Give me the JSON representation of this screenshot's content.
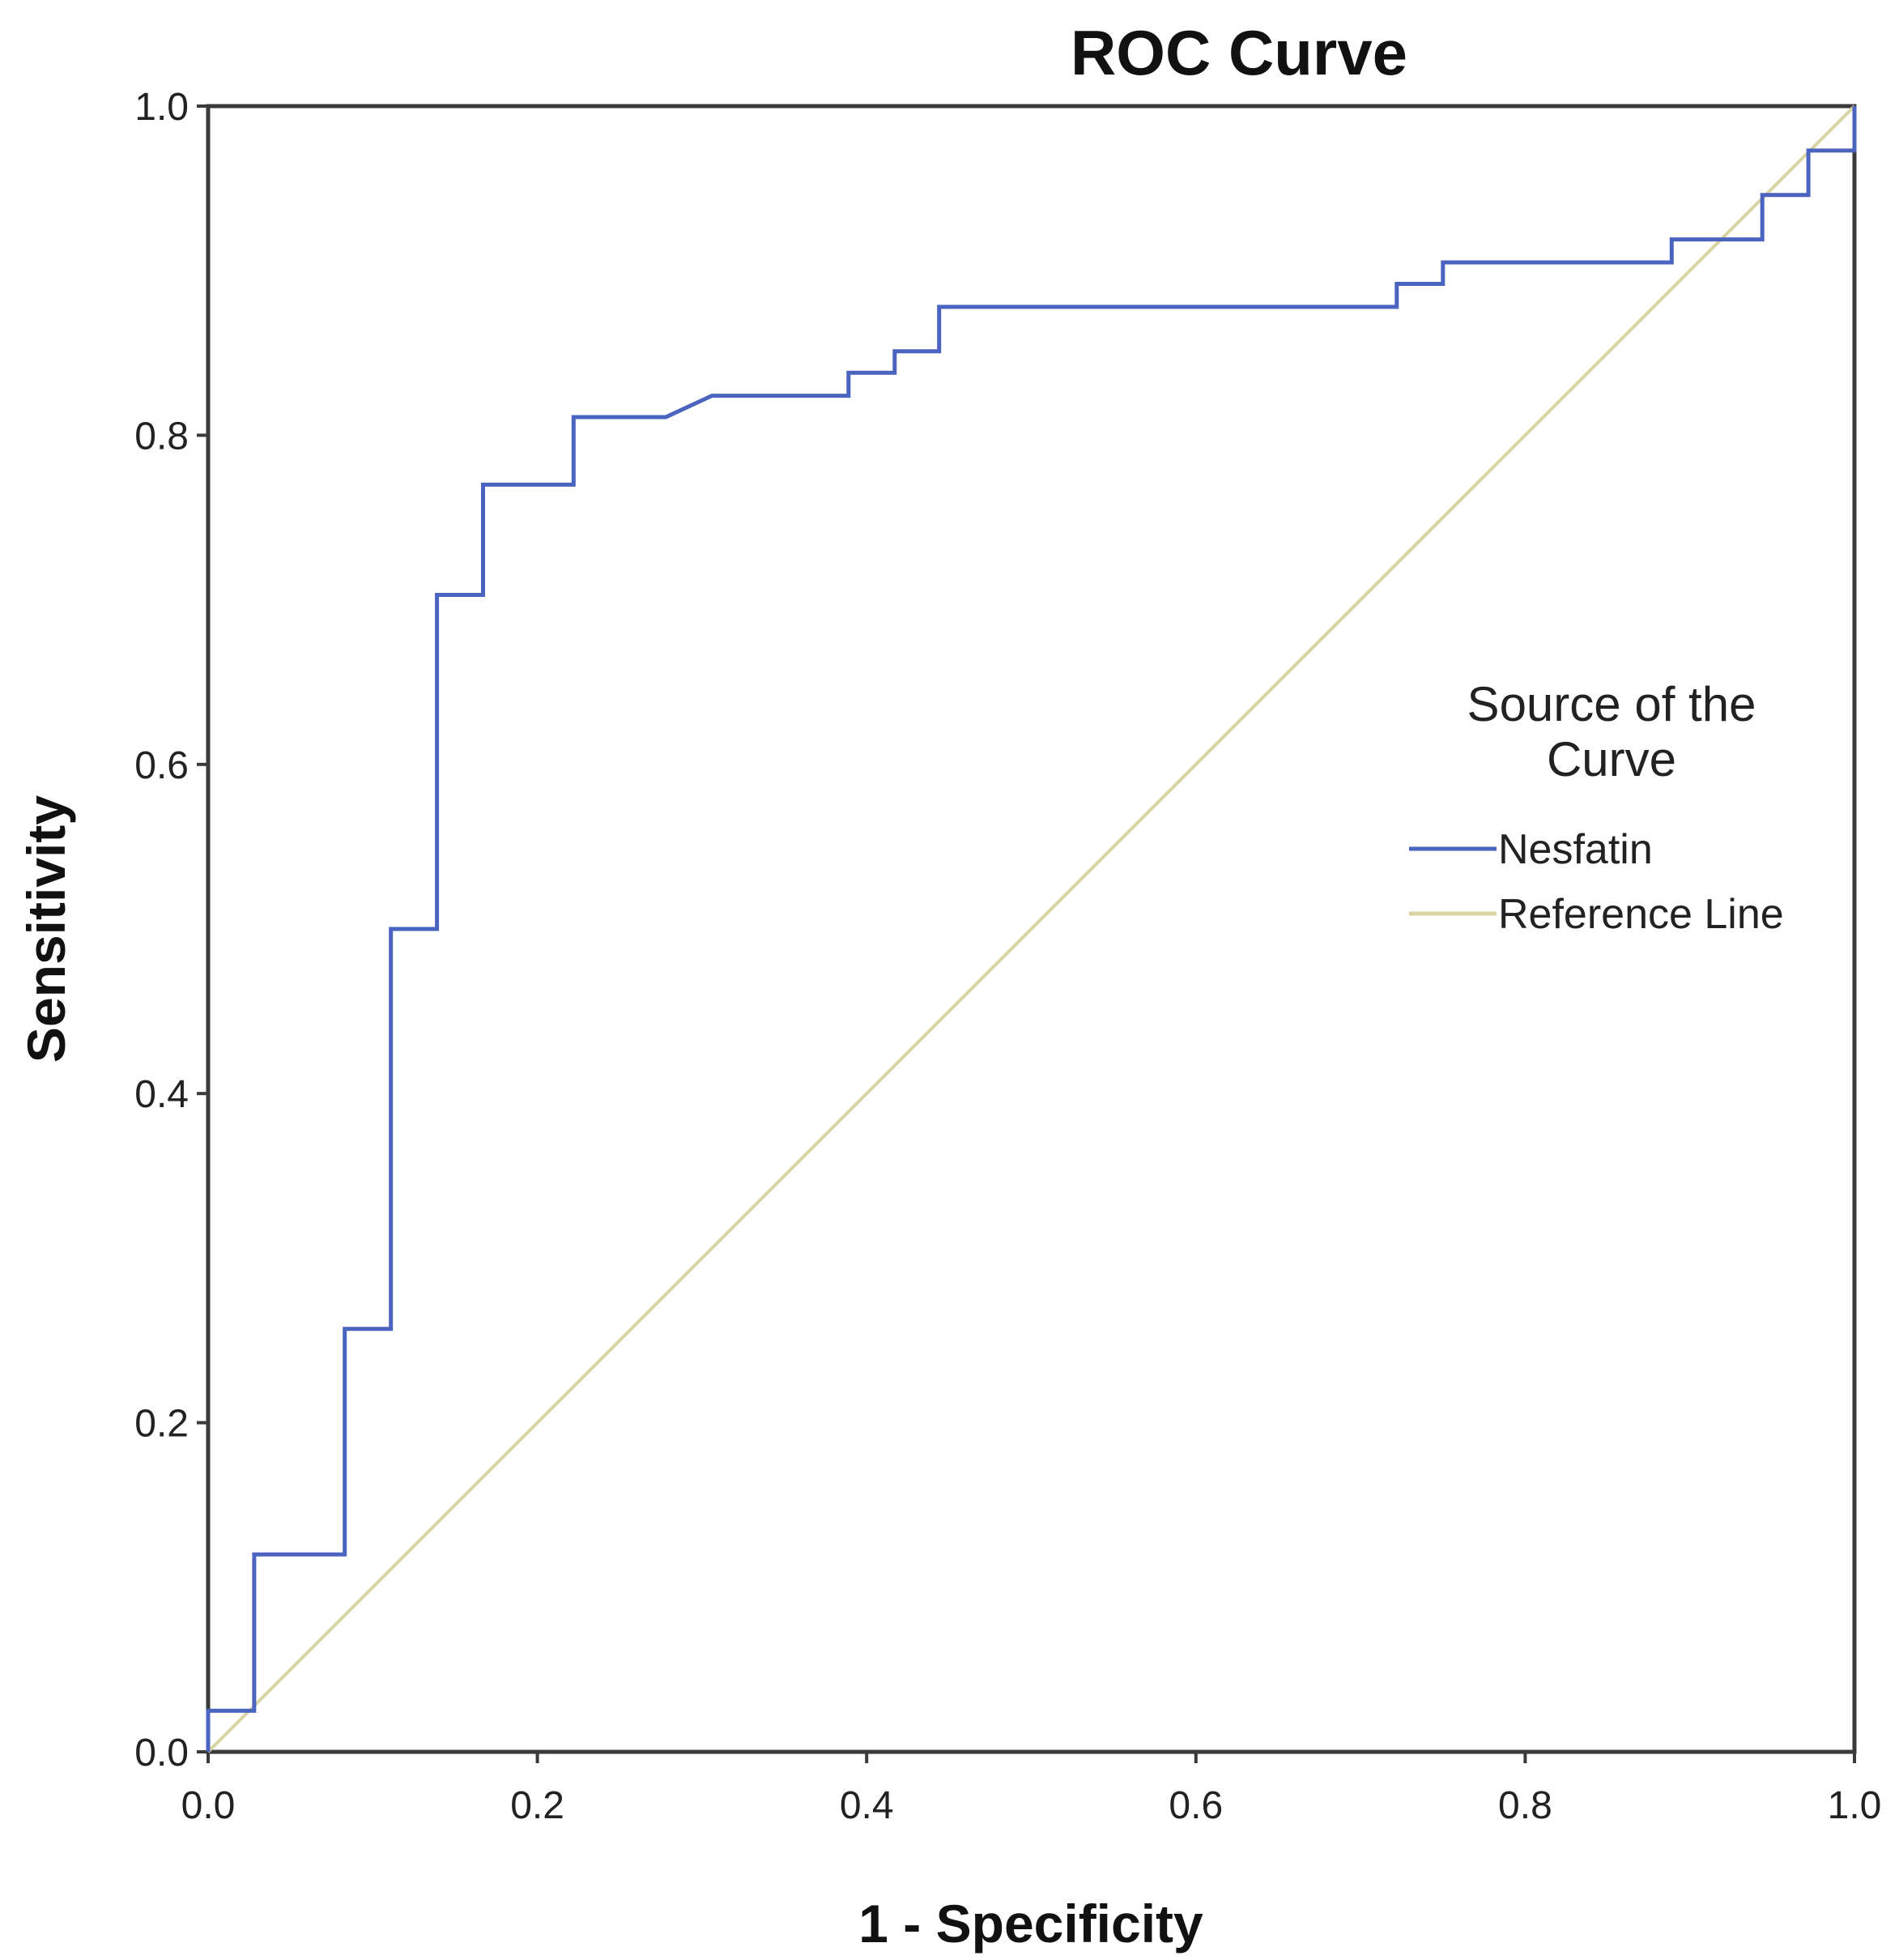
{
  "chart_data": {
    "type": "line",
    "title": "ROC Curve",
    "xlabel": "1 - Specificity",
    "ylabel": "Sensitivity",
    "xlim": [
      0.0,
      1.0
    ],
    "ylim": [
      0.0,
      1.0
    ],
    "x_ticks": [
      "0.0",
      "0.2",
      "0.4",
      "0.6",
      "0.8",
      "1.0"
    ],
    "y_ticks": [
      "0.0",
      "0.2",
      "0.4",
      "0.6",
      "0.8",
      "1.0"
    ],
    "grid": false,
    "legend": {
      "title_lines": [
        "Source of the",
        "Curve"
      ],
      "placement": "right"
    },
    "series": [
      {
        "name": "Nesfatin",
        "color": "#4a64c0",
        "step": true,
        "points": [
          [
            0.0,
            0.0
          ],
          [
            0.0,
            0.025
          ],
          [
            0.028,
            0.025
          ],
          [
            0.028,
            0.12
          ],
          [
            0.083,
            0.12
          ],
          [
            0.083,
            0.257
          ],
          [
            0.111,
            0.257
          ],
          [
            0.111,
            0.5
          ],
          [
            0.139,
            0.5
          ],
          [
            0.139,
            0.703
          ],
          [
            0.167,
            0.703
          ],
          [
            0.167,
            0.77
          ],
          [
            0.222,
            0.77
          ],
          [
            0.222,
            0.811
          ],
          [
            0.278,
            0.811
          ],
          [
            0.306,
            0.824
          ],
          [
            0.389,
            0.824
          ],
          [
            0.389,
            0.838
          ],
          [
            0.417,
            0.838
          ],
          [
            0.417,
            0.851
          ],
          [
            0.444,
            0.851
          ],
          [
            0.444,
            0.878
          ],
          [
            0.722,
            0.878
          ],
          [
            0.722,
            0.892
          ],
          [
            0.75,
            0.892
          ],
          [
            0.75,
            0.905
          ],
          [
            0.889,
            0.905
          ],
          [
            0.889,
            0.919
          ],
          [
            0.944,
            0.919
          ],
          [
            0.944,
            0.946
          ],
          [
            0.972,
            0.946
          ],
          [
            0.972,
            0.973
          ],
          [
            1.0,
            0.973
          ],
          [
            1.0,
            1.0
          ]
        ]
      },
      {
        "name": "Reference Line",
        "color": "#d8d4a4",
        "step": false,
        "points": [
          [
            0.0,
            0.0
          ],
          [
            1.0,
            1.0
          ]
        ]
      }
    ]
  }
}
